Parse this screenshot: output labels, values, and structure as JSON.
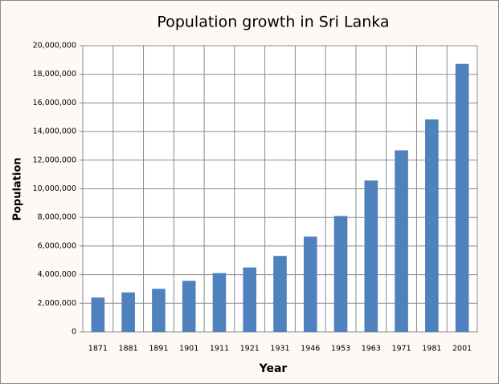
{
  "chart_data": {
    "type": "bar",
    "title": "Population growth in Sri Lanka",
    "x_label": "Year",
    "y_label": "Population",
    "categories": [
      "1871",
      "1881",
      "1891",
      "1901",
      "1911",
      "1921",
      "1931",
      "1946",
      "1953",
      "1963",
      "1971",
      "1981",
      "2001"
    ],
    "values": [
      2400000,
      2760000,
      3010000,
      3570000,
      4110000,
      4500000,
      5310000,
      6660000,
      8100000,
      10580000,
      12690000,
      14850000,
      18730000
    ],
    "color": "#4f81bd",
    "ylim": [
      0,
      20000000
    ],
    "yticks": [
      0,
      {
        "value": 2000000,
        "label": "2,000,000"
      },
      {
        "value": 4000000,
        "label": "4,000,000"
      },
      {
        "value": 6000000,
        "label": "6,000,000"
      },
      {
        "value": 8000000,
        "label": "8,000,000"
      },
      {
        "value": 10000000,
        "label": "10,000,000"
      },
      {
        "value": 12000000,
        "label": "12,000,000"
      },
      {
        "value": 14000000,
        "label": "14,000,000"
      },
      {
        "value": 16000000,
        "label": "16,000,000"
      },
      {
        "value": 18000000,
        "label": "18,000,000"
      },
      {
        "value": 20000000,
        "label": "20,000,000"
      }
    ],
    "grid": true
  }
}
